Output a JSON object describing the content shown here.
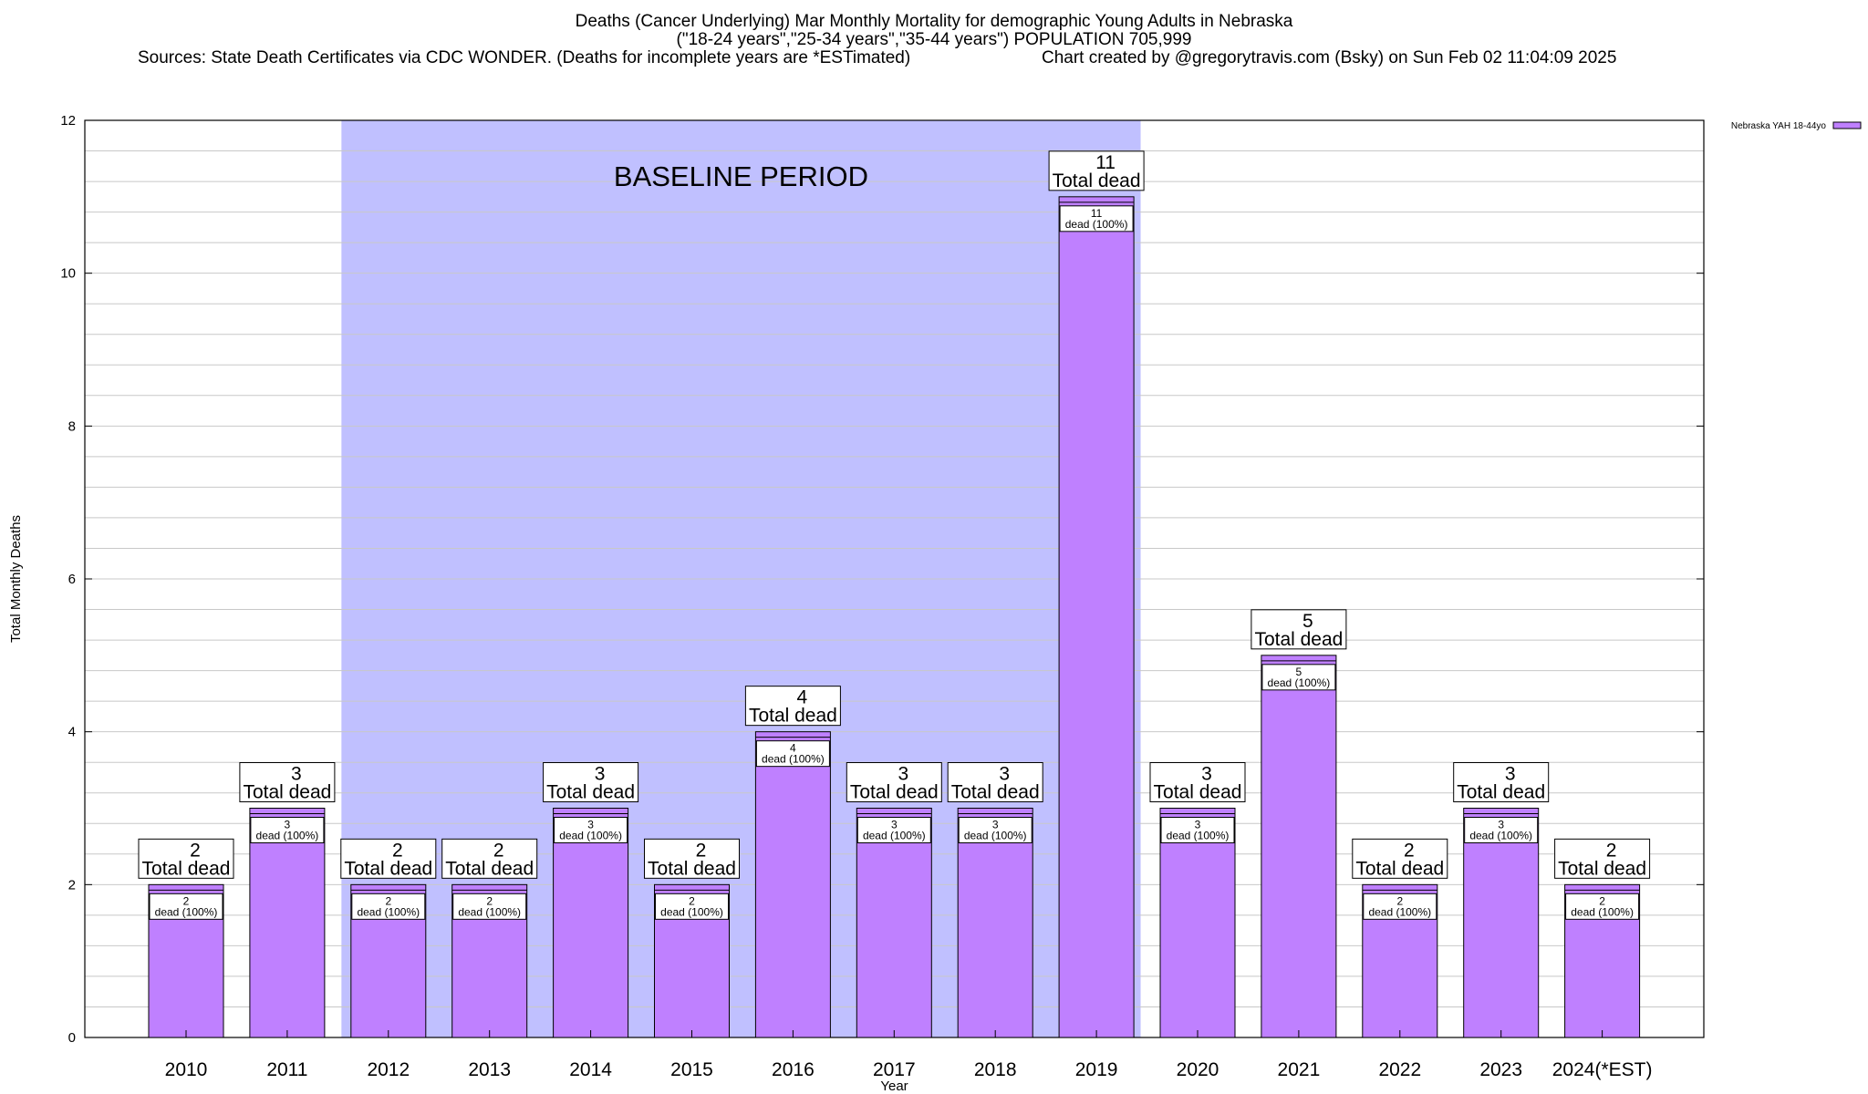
{
  "chart_data": {
    "type": "bar",
    "title": "Deaths (Cancer Underlying) Mar Monthly Mortality for demographic Young Adults in Nebraska",
    "subtitle": "(\"18-24 years\",\"25-34 years\",\"35-44 years\") POPULATION 705,999",
    "sources": "Sources: State Death Certificates via CDC WONDER. (Deaths for incomplete years are *ESTimated)",
    "credit": "Chart created by @gregorytravis.com (Bsky) on Sun Feb 02 11:04:09 2025",
    "xlabel": "Year",
    "ylabel": "Total Monthly Deaths",
    "ylim": [
      0,
      12
    ],
    "yticks": [
      0,
      2,
      4,
      6,
      8,
      10,
      12
    ],
    "grid": true,
    "categories": [
      "2010",
      "2011",
      "2012",
      "2013",
      "2014",
      "2015",
      "2016",
      "2017",
      "2018",
      "2019",
      "2020",
      "2021",
      "2022",
      "2023",
      "2024(*EST)"
    ],
    "series": [
      {
        "name": "Nebraska YAH 18-44yo",
        "values": [
          2,
          3,
          2,
          2,
          3,
          2,
          4,
          3,
          3,
          11,
          3,
          5,
          2,
          3,
          2
        ]
      }
    ],
    "total_label": "Total dead",
    "inner_label": "dead (100%)",
    "baseline": {
      "label": "BASELINE PERIOD",
      "start": "2012",
      "end": "2019"
    },
    "legend_position": "top-right",
    "colors": {
      "bar": "#bf80ff",
      "baseline": "#c0c0ff",
      "grid": "#c8c8c8"
    }
  }
}
